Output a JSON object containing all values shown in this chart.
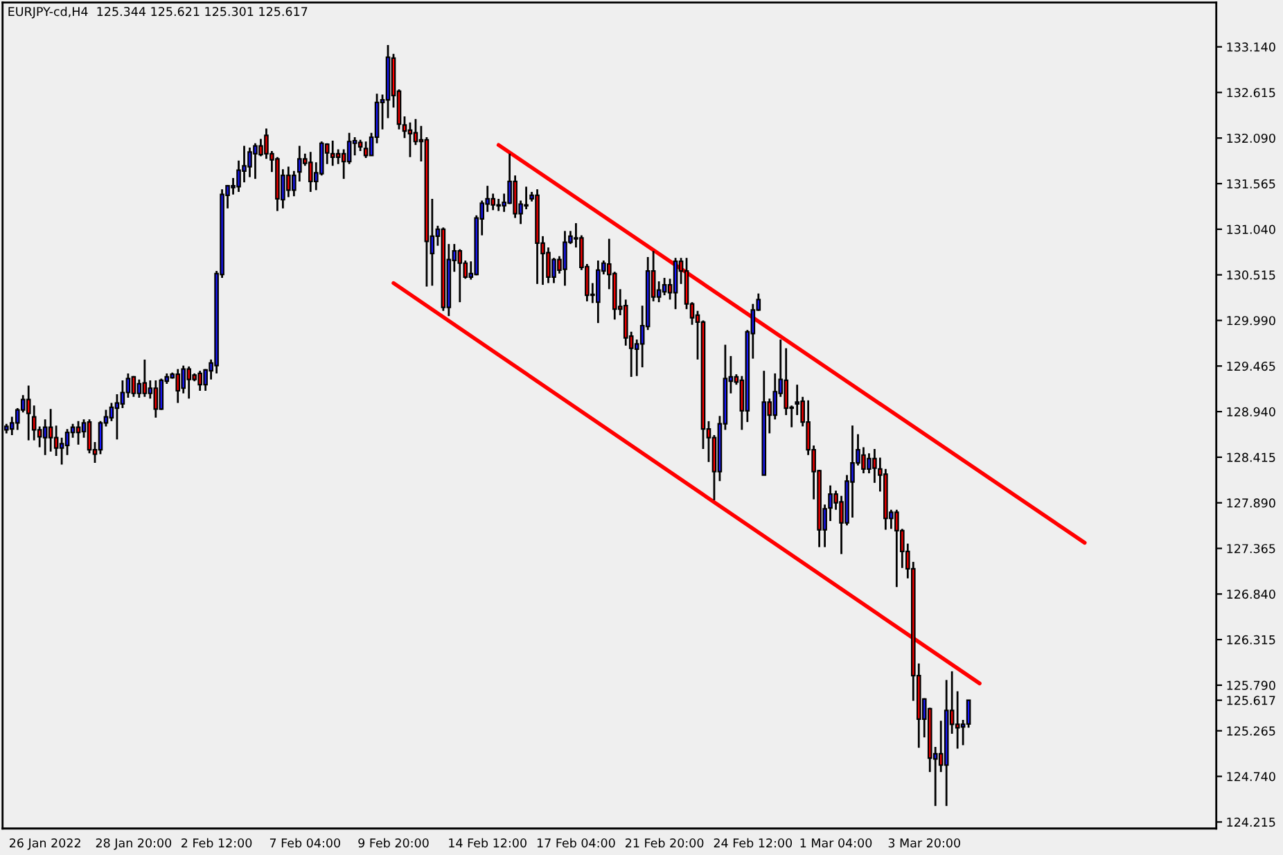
{
  "chart_data": {
    "type": "candlestick",
    "title": "EURJPY-cd,H4  125.344 125.621 125.301 125.617",
    "categories": [
      null,
      null,
      null,
      null,
      null,
      null,
      null,
      "26 Jan 2022",
      null,
      null,
      null,
      null,
      null,
      null,
      null,
      null,
      null,
      null,
      null,
      null,
      null,
      null,
      null,
      "28 Jan 20:00",
      null,
      null,
      null,
      null,
      null,
      null,
      null,
      null,
      null,
      null,
      null,
      null,
      null,
      null,
      "2 Feb 12:00",
      null,
      null,
      null,
      null,
      null,
      null,
      null,
      null,
      null,
      null,
      null,
      null,
      null,
      null,
      null,
      "7 Feb 04:00",
      null,
      null,
      null,
      null,
      null,
      null,
      null,
      null,
      null,
      null,
      null,
      null,
      null,
      null,
      null,
      "9 Feb 20:00",
      null,
      null,
      null,
      null,
      null,
      null,
      null,
      null,
      null,
      null,
      null,
      null,
      null,
      null,
      null,
      null,
      "14 Feb 12:00",
      null,
      null,
      null,
      null,
      null,
      null,
      null,
      null,
      null,
      null,
      null,
      null,
      null,
      null,
      null,
      "17 Feb 04:00",
      null,
      null,
      null,
      null,
      null,
      null,
      null,
      null,
      null,
      null,
      null,
      null,
      null,
      null,
      null,
      "21 Feb 20:00",
      null,
      null,
      null,
      null,
      null,
      null,
      null,
      null,
      null,
      null,
      null,
      null,
      null,
      null,
      null,
      "24 Feb 12:00",
      null,
      null,
      null,
      null,
      null,
      null,
      null,
      null,
      null,
      null,
      null,
      null,
      null,
      null,
      "1 Mar 04:00",
      null,
      null,
      null,
      null,
      null,
      null,
      null,
      null,
      null,
      null,
      null,
      null,
      null,
      null,
      null,
      "3 Mar 20:00",
      null,
      null,
      null,
      null,
      null,
      null,
      null,
      null,
      null,
      null,
      null,
      null,
      null,
      null,
      null,
      null,
      null,
      null,
      null,
      null,
      null,
      null,
      null,
      null,
      null,
      null,
      null,
      null,
      null,
      null,
      null,
      null,
      null,
      null,
      null,
      null,
      null,
      null,
      null,
      null,
      null,
      null,
      null,
      null,
      null,
      null,
      null,
      null,
      null,
      null,
      null,
      null
    ],
    "ohlc": [
      [
        128.73,
        128.8,
        128.69,
        128.77
      ],
      [
        128.74,
        128.88,
        128.67,
        128.81
      ],
      [
        128.81,
        128.98,
        128.73,
        128.96
      ],
      [
        128.96,
        129.13,
        128.93,
        129.08
      ],
      [
        129.08,
        129.24,
        128.61,
        128.92
      ],
      [
        128.88,
        129.01,
        128.61,
        128.73
      ],
      [
        128.73,
        128.77,
        128.53,
        128.65
      ],
      [
        128.64,
        128.85,
        128.44,
        128.76
      ],
      [
        128.76,
        128.97,
        128.48,
        128.64
      ],
      [
        128.64,
        128.78,
        128.43,
        128.52
      ],
      [
        128.52,
        128.64,
        128.33,
        128.57
      ],
      [
        128.55,
        128.74,
        128.44,
        128.7
      ],
      [
        128.7,
        128.8,
        128.64,
        128.76
      ],
      [
        128.76,
        128.83,
        128.56,
        128.7
      ],
      [
        128.71,
        128.85,
        128.64,
        128.81
      ],
      [
        128.82,
        128.85,
        128.46,
        128.5
      ],
      [
        128.5,
        128.59,
        128.35,
        128.45
      ],
      [
        128.5,
        128.83,
        128.45,
        128.81
      ],
      [
        128.81,
        128.96,
        128.77,
        128.88
      ],
      [
        128.87,
        129.04,
        128.83,
        128.99
      ],
      [
        128.98,
        129.14,
        128.62,
        129.04
      ],
      [
        129.03,
        129.3,
        128.98,
        129.16
      ],
      [
        129.16,
        129.38,
        129.1,
        129.32
      ],
      [
        129.34,
        129.35,
        129.11,
        129.15
      ],
      [
        129.15,
        129.31,
        129.1,
        129.26
      ],
      [
        129.27,
        129.54,
        129.11,
        129.15
      ],
      [
        129.15,
        129.3,
        129.09,
        129.21
      ],
      [
        129.21,
        129.3,
        128.87,
        128.97
      ],
      [
        128.97,
        129.32,
        128.96,
        129.3
      ],
      [
        129.29,
        129.38,
        129.26,
        129.34
      ],
      [
        129.33,
        129.39,
        129.32,
        129.37
      ],
      [
        129.37,
        129.43,
        129.04,
        129.18
      ],
      [
        129.21,
        129.47,
        129.15,
        129.43
      ],
      [
        129.43,
        129.46,
        129.09,
        129.31
      ],
      [
        129.36,
        129.38,
        129.29,
        129.31
      ],
      [
        129.38,
        129.41,
        129.18,
        129.25
      ],
      [
        129.25,
        129.43,
        129.18,
        129.42
      ],
      [
        129.41,
        129.54,
        129.31,
        129.5
      ],
      [
        129.47,
        130.56,
        129.38,
        130.53
      ],
      [
        130.52,
        131.5,
        130.48,
        131.44
      ],
      [
        131.43,
        131.55,
        131.28,
        131.54
      ],
      [
        131.52,
        131.63,
        131.44,
        131.54
      ],
      [
        131.53,
        131.83,
        131.47,
        131.72
      ],
      [
        131.71,
        132.0,
        131.58,
        131.77
      ],
      [
        131.76,
        131.98,
        131.64,
        131.93
      ],
      [
        131.91,
        132.03,
        131.62,
        132.0
      ],
      [
        132.0,
        132.08,
        131.88,
        131.9
      ],
      [
        132.12,
        132.2,
        131.85,
        131.91
      ],
      [
        131.91,
        131.94,
        131.7,
        131.84
      ],
      [
        131.85,
        131.87,
        131.25,
        131.39
      ],
      [
        131.38,
        131.73,
        131.28,
        131.66
      ],
      [
        131.66,
        131.76,
        131.41,
        131.49
      ],
      [
        131.49,
        131.71,
        131.42,
        131.66
      ],
      [
        131.7,
        132.0,
        131.59,
        131.85
      ],
      [
        131.85,
        131.91,
        131.77,
        131.8
      ],
      [
        131.81,
        131.93,
        131.47,
        131.59
      ],
      [
        131.59,
        131.81,
        131.49,
        131.69
      ],
      [
        131.68,
        132.05,
        131.66,
        132.03
      ],
      [
        132.02,
        132.03,
        131.79,
        131.92
      ],
      [
        131.91,
        132.06,
        131.77,
        131.87
      ],
      [
        131.91,
        131.96,
        131.79,
        131.87
      ],
      [
        131.91,
        131.96,
        131.62,
        131.82
      ],
      [
        131.82,
        132.15,
        131.79,
        132.05
      ],
      [
        132.03,
        132.1,
        131.89,
        132.06
      ],
      [
        132.04,
        132.07,
        131.94,
        131.99
      ],
      [
        131.97,
        132.05,
        131.86,
        131.89
      ],
      [
        131.89,
        132.15,
        131.89,
        132.1
      ],
      [
        132.1,
        132.6,
        132.03,
        132.5
      ],
      [
        132.5,
        132.59,
        132.19,
        132.53
      ],
      [
        132.53,
        133.16,
        132.32,
        133.02
      ],
      [
        133.01,
        133.06,
        132.44,
        132.58
      ],
      [
        132.63,
        132.65,
        132.19,
        132.25
      ],
      [
        132.24,
        132.34,
        132.09,
        132.17
      ],
      [
        132.18,
        132.27,
        131.87,
        132.14
      ],
      [
        132.15,
        132.31,
        132.01,
        132.05
      ],
      [
        132.07,
        132.23,
        131.82,
        132.05
      ],
      [
        132.07,
        132.1,
        130.38,
        130.9
      ],
      [
        130.76,
        131.39,
        130.39,
        130.96
      ],
      [
        130.96,
        131.08,
        130.85,
        131.04
      ],
      [
        131.04,
        131.06,
        130.1,
        130.14
      ],
      [
        130.14,
        130.87,
        130.04,
        130.69
      ],
      [
        130.68,
        130.87,
        130.55,
        130.79
      ],
      [
        130.79,
        130.81,
        130.2,
        130.65
      ],
      [
        130.65,
        130.68,
        130.47,
        130.49
      ],
      [
        130.49,
        130.67,
        130.46,
        130.53
      ],
      [
        130.52,
        131.2,
        130.51,
        131.17
      ],
      [
        131.16,
        131.37,
        130.97,
        131.34
      ],
      [
        131.33,
        131.54,
        131.24,
        131.39
      ],
      [
        131.39,
        131.45,
        131.26,
        131.32
      ],
      [
        131.31,
        131.39,
        131.25,
        131.32
      ],
      [
        131.31,
        131.45,
        131.24,
        131.35
      ],
      [
        131.34,
        131.91,
        131.33,
        131.59
      ],
      [
        131.59,
        131.66,
        131.17,
        131.22
      ],
      [
        131.22,
        131.37,
        131.1,
        131.33
      ],
      [
        131.32,
        131.53,
        131.27,
        131.31
      ],
      [
        131.39,
        131.47,
        131.36,
        131.43
      ],
      [
        131.43,
        131.5,
        130.41,
        130.88
      ],
      [
        130.88,
        130.96,
        130.4,
        130.76
      ],
      [
        130.77,
        130.83,
        130.42,
        130.49
      ],
      [
        130.49,
        130.71,
        130.42,
        130.69
      ],
      [
        130.69,
        130.73,
        130.53,
        130.57
      ],
      [
        130.58,
        131.02,
        130.39,
        130.89
      ],
      [
        130.89,
        131.02,
        130.87,
        130.96
      ],
      [
        130.94,
        131.11,
        130.83,
        130.93
      ],
      [
        130.94,
        130.97,
        130.57,
        130.6
      ],
      [
        130.61,
        130.64,
        130.21,
        130.28
      ],
      [
        130.28,
        130.42,
        130.19,
        130.29
      ],
      [
        130.2,
        130.68,
        129.96,
        130.57
      ],
      [
        130.56,
        130.68,
        130.52,
        130.65
      ],
      [
        130.64,
        130.93,
        130.35,
        130.52
      ],
      [
        130.53,
        130.55,
        130.0,
        130.12
      ],
      [
        130.15,
        130.35,
        130.05,
        130.12
      ],
      [
        130.16,
        130.23,
        129.7,
        129.79
      ],
      [
        129.81,
        129.86,
        129.34,
        129.67
      ],
      [
        129.66,
        129.77,
        129.35,
        129.72
      ],
      [
        129.72,
        130.16,
        129.45,
        129.93
      ],
      [
        129.92,
        130.72,
        129.88,
        130.56
      ],
      [
        130.56,
        130.79,
        130.21,
        130.26
      ],
      [
        130.26,
        130.44,
        130.2,
        130.34
      ],
      [
        130.32,
        130.48,
        130.28,
        130.4
      ],
      [
        130.4,
        130.47,
        130.23,
        130.31
      ],
      [
        130.31,
        130.71,
        130.12,
        130.67
      ],
      [
        130.67,
        130.71,
        130.41,
        130.56
      ],
      [
        130.56,
        130.71,
        130.12,
        130.18
      ],
      [
        130.18,
        130.2,
        129.94,
        130.02
      ],
      [
        130.05,
        130.1,
        129.54,
        129.97
      ],
      [
        129.97,
        129.99,
        128.51,
        128.74
      ],
      [
        128.74,
        128.83,
        128.36,
        128.64
      ],
      [
        128.64,
        128.67,
        127.92,
        128.25
      ],
      [
        128.25,
        128.89,
        128.14,
        128.8
      ],
      [
        128.8,
        129.71,
        128.73,
        129.32
      ],
      [
        129.29,
        129.58,
        129.15,
        129.34
      ],
      [
        129.34,
        129.37,
        129.25,
        129.28
      ],
      [
        129.3,
        129.35,
        128.73,
        128.95
      ],
      [
        128.95,
        129.88,
        128.82,
        129.86
      ],
      [
        129.84,
        130.18,
        129.55,
        130.11
      ],
      [
        130.11,
        130.3,
        130.1,
        130.23
      ],
      [
        128.21,
        129.41,
        128.21,
        129.05
      ],
      [
        129.05,
        129.09,
        128.69,
        128.9
      ],
      [
        128.9,
        129.38,
        128.85,
        129.17
      ],
      [
        129.15,
        129.77,
        129.11,
        129.31
      ],
      [
        129.3,
        129.67,
        128.9,
        128.98
      ],
      [
        128.99,
        129.01,
        128.76,
        128.98
      ],
      [
        129.03,
        129.25,
        128.9,
        129.05
      ],
      [
        129.06,
        129.11,
        128.77,
        128.82
      ],
      [
        128.82,
        129.07,
        128.44,
        128.5
      ],
      [
        128.5,
        128.55,
        127.93,
        128.25
      ],
      [
        128.26,
        128.27,
        127.38,
        127.58
      ],
      [
        127.58,
        127.87,
        127.38,
        127.82
      ],
      [
        127.83,
        128.09,
        127.68,
        127.99
      ],
      [
        127.99,
        128.03,
        127.81,
        127.89
      ],
      [
        127.9,
        127.97,
        127.3,
        127.66
      ],
      [
        127.66,
        128.21,
        127.63,
        128.14
      ],
      [
        128.13,
        128.78,
        127.72,
        128.35
      ],
      [
        128.35,
        128.68,
        128.32,
        128.5
      ],
      [
        128.44,
        128.53,
        128.23,
        128.28
      ],
      [
        128.28,
        128.46,
        128.23,
        128.4
      ],
      [
        128.4,
        128.51,
        128.12,
        128.29
      ],
      [
        128.28,
        128.41,
        128.02,
        128.21
      ],
      [
        128.22,
        128.28,
        127.58,
        127.71
      ],
      [
        127.71,
        127.81,
        127.59,
        127.78
      ],
      [
        127.78,
        127.81,
        126.92,
        127.57
      ],
      [
        127.57,
        127.59,
        127.14,
        127.33
      ],
      [
        127.33,
        127.42,
        127.02,
        127.13
      ],
      [
        127.13,
        127.21,
        125.61,
        125.9
      ],
      [
        125.9,
        126.04,
        125.07,
        125.4
      ],
      [
        125.4,
        125.64,
        125.19,
        125.63
      ],
      [
        125.52,
        125.53,
        124.79,
        124.95
      ],
      [
        124.94,
        125.08,
        124.4,
        125.0
      ],
      [
        125.0,
        125.38,
        124.79,
        124.87
      ],
      [
        124.87,
        125.85,
        124.4,
        125.5
      ],
      [
        125.5,
        125.95,
        125.23,
        125.34
      ],
      [
        125.34,
        125.72,
        125.06,
        125.3
      ],
      [
        125.31,
        125.39,
        125.1,
        125.34
      ],
      [
        125.344,
        125.621,
        125.301,
        125.617
      ],
      null,
      null,
      null,
      null,
      null,
      null,
      null,
      null,
      null,
      null,
      null,
      null,
      null,
      null,
      null,
      null,
      null,
      null,
      null,
      null,
      null,
      null,
      null,
      null,
      null,
      null,
      null,
      null,
      null,
      null,
      null,
      null,
      null,
      null,
      null,
      null,
      null,
      null,
      null,
      null,
      null,
      null,
      null,
      null
    ],
    "series": [
      {
        "type": "line",
        "color": "#ff0000",
        "values": [
          null,
          null,
          null,
          null,
          null,
          null,
          null,
          null,
          null,
          null,
          null,
          null,
          null,
          null,
          null,
          null,
          null,
          null,
          null,
          null,
          null,
          null,
          null,
          null,
          null,
          null,
          null,
          null,
          null,
          null,
          null,
          null,
          null,
          null,
          null,
          null,
          null,
          null,
          null,
          null,
          null,
          null,
          null,
          null,
          null,
          null,
          null,
          null,
          null,
          null,
          null,
          null,
          null,
          null,
          null,
          null,
          null,
          null,
          null,
          null,
          null,
          null,
          null,
          null,
          null,
          null,
          null,
          null,
          null,
          null,
          null,
          null,
          null,
          null,
          null,
          null,
          null,
          null,
          null,
          null,
          null,
          null,
          null,
          null,
          null,
          null,
          null,
          null,
          null,
          132.01,
          null,
          null,
          null,
          null,
          null,
          null,
          null,
          null,
          null,
          null,
          null,
          null,
          null,
          null,
          null,
          null,
          null,
          null,
          null,
          null,
          null,
          null,
          null,
          null,
          null,
          null,
          null,
          null,
          null,
          null,
          null,
          null,
          null,
          null,
          null,
          null,
          null,
          null,
          null,
          null,
          null,
          null,
          null,
          null,
          null,
          null,
          null,
          null,
          null,
          null,
          null,
          null,
          null,
          null,
          null,
          null,
          null,
          null,
          null,
          null,
          null,
          null,
          null,
          null,
          null,
          null,
          null,
          null,
          null,
          null,
          null,
          null,
          null,
          null,
          null,
          null,
          null,
          null,
          null,
          null,
          null,
          null,
          null,
          null,
          null,
          null,
          null,
          null,
          null,
          null,
          null,
          null,
          null,
          null,
          null,
          null,
          null,
          null,
          null,
          null,
          null,
          null,
          null,
          null,
          null,
          127.43,
          null,
          null,
          null,
          null,
          null,
          null,
          null,
          null,
          null,
          null,
          null,
          null,
          null,
          null,
          null,
          null,
          null,
          null,
          null,
          null,
          null,
          null,
          null
        ]
      },
      {
        "type": "line",
        "color": "#ff0000",
        "values": [
          null,
          null,
          null,
          null,
          null,
          null,
          null,
          null,
          null,
          null,
          null,
          null,
          null,
          null,
          null,
          null,
          null,
          null,
          null,
          null,
          null,
          null,
          null,
          null,
          null,
          null,
          null,
          null,
          null,
          null,
          null,
          null,
          null,
          null,
          null,
          null,
          null,
          null,
          null,
          null,
          null,
          null,
          null,
          null,
          null,
          null,
          null,
          null,
          null,
          null,
          null,
          null,
          null,
          null,
          null,
          null,
          null,
          null,
          null,
          null,
          null,
          null,
          null,
          null,
          null,
          null,
          null,
          null,
          null,
          null,
          130.42,
          null,
          null,
          null,
          null,
          null,
          null,
          null,
          null,
          null,
          null,
          null,
          null,
          null,
          null,
          null,
          null,
          null,
          null,
          null,
          null,
          null,
          null,
          null,
          null,
          null,
          null,
          null,
          null,
          null,
          null,
          null,
          null,
          null,
          null,
          null,
          null,
          null,
          null,
          null,
          null,
          null,
          null,
          null,
          null,
          null,
          null,
          null,
          null,
          null,
          null,
          null,
          null,
          null,
          null,
          null,
          null,
          null,
          null,
          null,
          null,
          null,
          null,
          null,
          null,
          null,
          null,
          null,
          null,
          null,
          null,
          null,
          null,
          null,
          null,
          null,
          null,
          null,
          null,
          null,
          null,
          null,
          null,
          null,
          null,
          null,
          null,
          null,
          null,
          null,
          null,
          null,
          null,
          null,
          null,
          null,
          null,
          null,
          null,
          null,
          null,
          null,
          null,
          null,
          null,
          null,
          125.81,
          null,
          null,
          null,
          null,
          null,
          null,
          null,
          null,
          null,
          null,
          null,
          null,
          null,
          null,
          null,
          null,
          null,
          null,
          null,
          null,
          null,
          null,
          null,
          null,
          null,
          null,
          null,
          null,
          null,
          null,
          null,
          null,
          null,
          null,
          null,
          null,
          null,
          null,
          null,
          null,
          null,
          null
        ]
      }
    ],
    "ylim": [
      124.14,
      133.65
    ],
    "yticks": [
      {
        "value": 124.215,
        "label": "124.215"
      },
      {
        "value": 124.74,
        "label": "124.740"
      },
      {
        "value": 125.265,
        "label": "125.265"
      },
      {
        "value": 125.617,
        "label": "125.617"
      },
      {
        "value": 125.79,
        "label": "125.790"
      },
      {
        "value": 126.315,
        "label": "126.315"
      },
      {
        "value": 126.84,
        "label": "126.840"
      },
      {
        "value": 127.365,
        "label": "127.365"
      },
      {
        "value": 127.89,
        "label": "127.890"
      },
      {
        "value": 128.415,
        "label": "128.415"
      },
      {
        "value": 128.94,
        "label": "128.940"
      },
      {
        "value": 129.465,
        "label": "129.465"
      },
      {
        "value": 129.99,
        "label": "129.990"
      },
      {
        "value": 130.515,
        "label": "130.515"
      },
      {
        "value": 131.04,
        "label": "131.040"
      },
      {
        "value": 131.565,
        "label": "131.565"
      },
      {
        "value": 132.09,
        "label": "132.090"
      },
      {
        "value": 132.615,
        "label": "132.615"
      },
      {
        "value": 133.14,
        "label": "133.140"
      }
    ],
    "grid": false,
    "legend": false
  }
}
